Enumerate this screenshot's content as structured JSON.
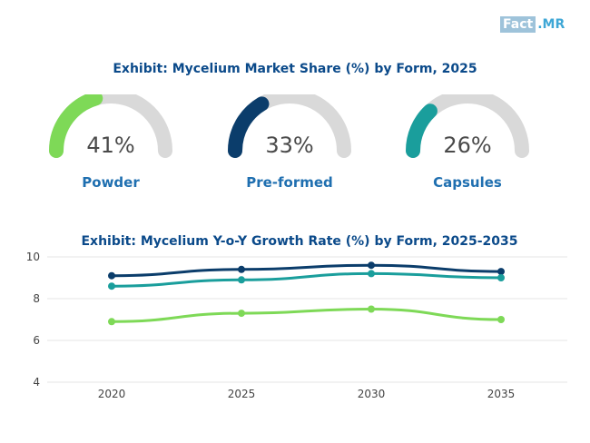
{
  "logo": {
    "part1": "Fact",
    "part2": ".MR"
  },
  "chart_data": [
    {
      "type": "gauge",
      "title": "Exhibit: Mycelium Market Share (%) by Form, 2025",
      "items": [
        {
          "label": "Powder",
          "value": 41,
          "display": "41%",
          "color": "#7ed957"
        },
        {
          "label": "Pre-formed",
          "value": 33,
          "display": "33%",
          "color": "#0b3d6b"
        },
        {
          "label": "Capsules",
          "value": 26,
          "display": "26%",
          "color": "#1a9e9c"
        }
      ],
      "track_color": "#d9d9d9"
    },
    {
      "type": "line",
      "title": "Exhibit: Mycelium Y-o-Y Growth Rate (%) by Form, 2025-2035",
      "x": [
        "2020",
        "2025",
        "2030",
        "2035"
      ],
      "ylim": [
        4,
        10
      ],
      "yticks": [
        "4",
        "6",
        "8",
        "10"
      ],
      "series": [
        {
          "name": "Pre-formed",
          "values": [
            9.1,
            9.4,
            9.6,
            9.3
          ],
          "color": "#0b3d6b"
        },
        {
          "name": "Capsules",
          "values": [
            8.6,
            8.9,
            9.2,
            9.0
          ],
          "color": "#1a9e9c"
        },
        {
          "name": "Powder",
          "values": [
            6.9,
            7.3,
            7.5,
            7.0
          ],
          "color": "#7ed957"
        }
      ]
    }
  ]
}
